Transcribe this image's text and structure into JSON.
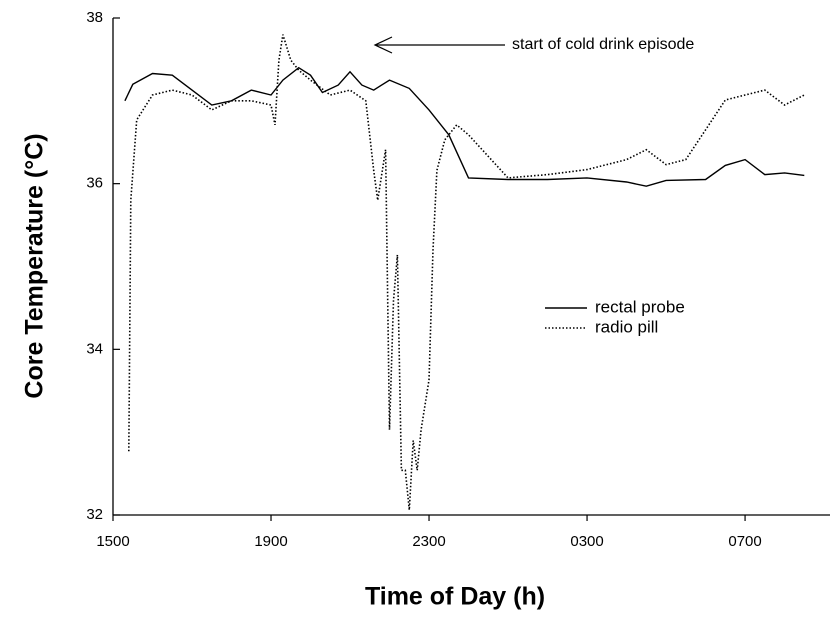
{
  "chart_data": {
    "type": "line",
    "annotation": "start of cold drink episode",
    "xlabel": "Time of Day (h)",
    "ylabel": "Core Temperature (°C)",
    "xlim": [
      15,
      33.15
    ],
    "ylim": [
      32,
      38
    ],
    "xticks": [
      {
        "value": 15,
        "label": "1500"
      },
      {
        "value": 19,
        "label": "1900"
      },
      {
        "value": 23,
        "label": "2300"
      },
      {
        "value": 27,
        "label": "0300"
      },
      {
        "value": 31,
        "label": "0700"
      }
    ],
    "yticks": [
      32,
      34,
      36,
      38
    ],
    "grid": false,
    "legend": "right",
    "series": [
      {
        "name": "rectal probe",
        "color": "#000000",
        "style": "solid",
        "x": [
          15.3,
          15.5,
          16.0,
          16.5,
          17.0,
          17.5,
          18.0,
          18.5,
          19.0,
          19.3,
          19.7,
          20.0,
          20.3,
          20.7,
          21.0,
          21.3,
          21.6,
          22.0,
          22.5,
          23.0,
          23.5,
          24.0,
          25.0,
          26.0,
          27.0,
          28.0,
          28.5,
          29.0,
          30.0,
          30.5,
          31.0,
          31.5,
          32.0,
          32.5
        ],
        "values": [
          37.0,
          37.2,
          37.33,
          37.31,
          37.13,
          36.95,
          37.0,
          37.13,
          37.07,
          37.25,
          37.4,
          37.31,
          37.1,
          37.19,
          37.35,
          37.19,
          37.13,
          37.25,
          37.15,
          36.89,
          36.59,
          36.07,
          36.05,
          36.05,
          36.07,
          36.02,
          35.97,
          36.04,
          36.05,
          36.22,
          36.29,
          36.11,
          36.13,
          36.1
        ]
      },
      {
        "name": "radio pill",
        "color": "#000000",
        "style": "dotted",
        "x": [
          15.4,
          15.45,
          15.6,
          16.0,
          16.5,
          17.0,
          17.5,
          18.0,
          18.5,
          19.0,
          19.1,
          19.2,
          19.3,
          19.5,
          19.7,
          20.0,
          20.5,
          21.0,
          21.4,
          21.6,
          21.7,
          21.9,
          22.0,
          22.1,
          22.2,
          22.3,
          22.4,
          22.5,
          22.6,
          22.7,
          22.8,
          23.0,
          23.1,
          23.2,
          23.4,
          23.7,
          24.0,
          25.0,
          26.0,
          27.0,
          28.0,
          28.5,
          29.0,
          29.5,
          30.0,
          30.5,
          31.0,
          31.5,
          32.0,
          32.5
        ],
        "values": [
          32.77,
          35.8,
          36.77,
          37.07,
          37.13,
          37.07,
          36.89,
          37.0,
          37.0,
          36.95,
          36.71,
          37.49,
          37.8,
          37.49,
          37.37,
          37.25,
          37.07,
          37.13,
          37.0,
          36.16,
          35.8,
          36.41,
          33.03,
          34.59,
          35.14,
          32.54,
          32.54,
          32.06,
          32.9,
          32.54,
          33.03,
          33.63,
          35.2,
          36.16,
          36.53,
          36.71,
          36.59,
          36.07,
          36.11,
          36.17,
          36.29,
          36.41,
          36.23,
          36.29,
          36.65,
          37.01,
          37.07,
          37.13,
          36.95,
          37.07
        ]
      }
    ]
  }
}
